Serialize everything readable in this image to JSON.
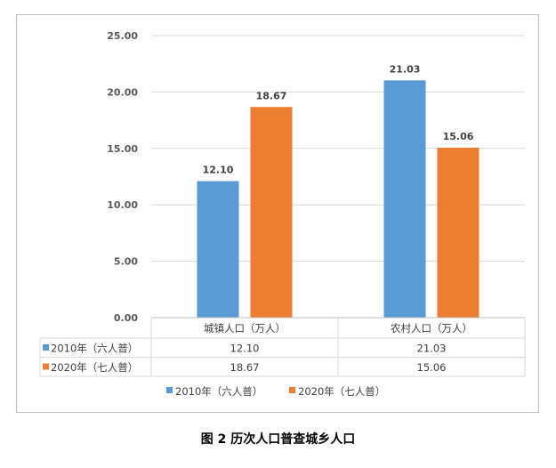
{
  "figure": {
    "caption": "图 2 历次人口普查城乡人口"
  },
  "chart_data": {
    "type": "bar",
    "categories": [
      "城镇人口（万人）",
      "农村人口（万人）"
    ],
    "series": [
      {
        "name": "2010年（六人普）",
        "values": [
          12.1,
          21.03
        ],
        "labels": [
          "12.10",
          "21.03"
        ],
        "color": "#5B9BD5"
      },
      {
        "name": "2020年（七人普）",
        "values": [
          18.67,
          15.06
        ],
        "labels": [
          "18.67",
          "15.06"
        ],
        "color": "#ED7D31"
      }
    ],
    "ylim": [
      0,
      25
    ],
    "yticks": [
      0,
      5,
      10,
      15,
      20,
      25
    ],
    "ytick_labels": [
      "0.00",
      "5.00",
      "10.00",
      "15.00",
      "20.00",
      "25.00"
    ],
    "grid": true,
    "legend": "bottom",
    "data_table": true
  }
}
